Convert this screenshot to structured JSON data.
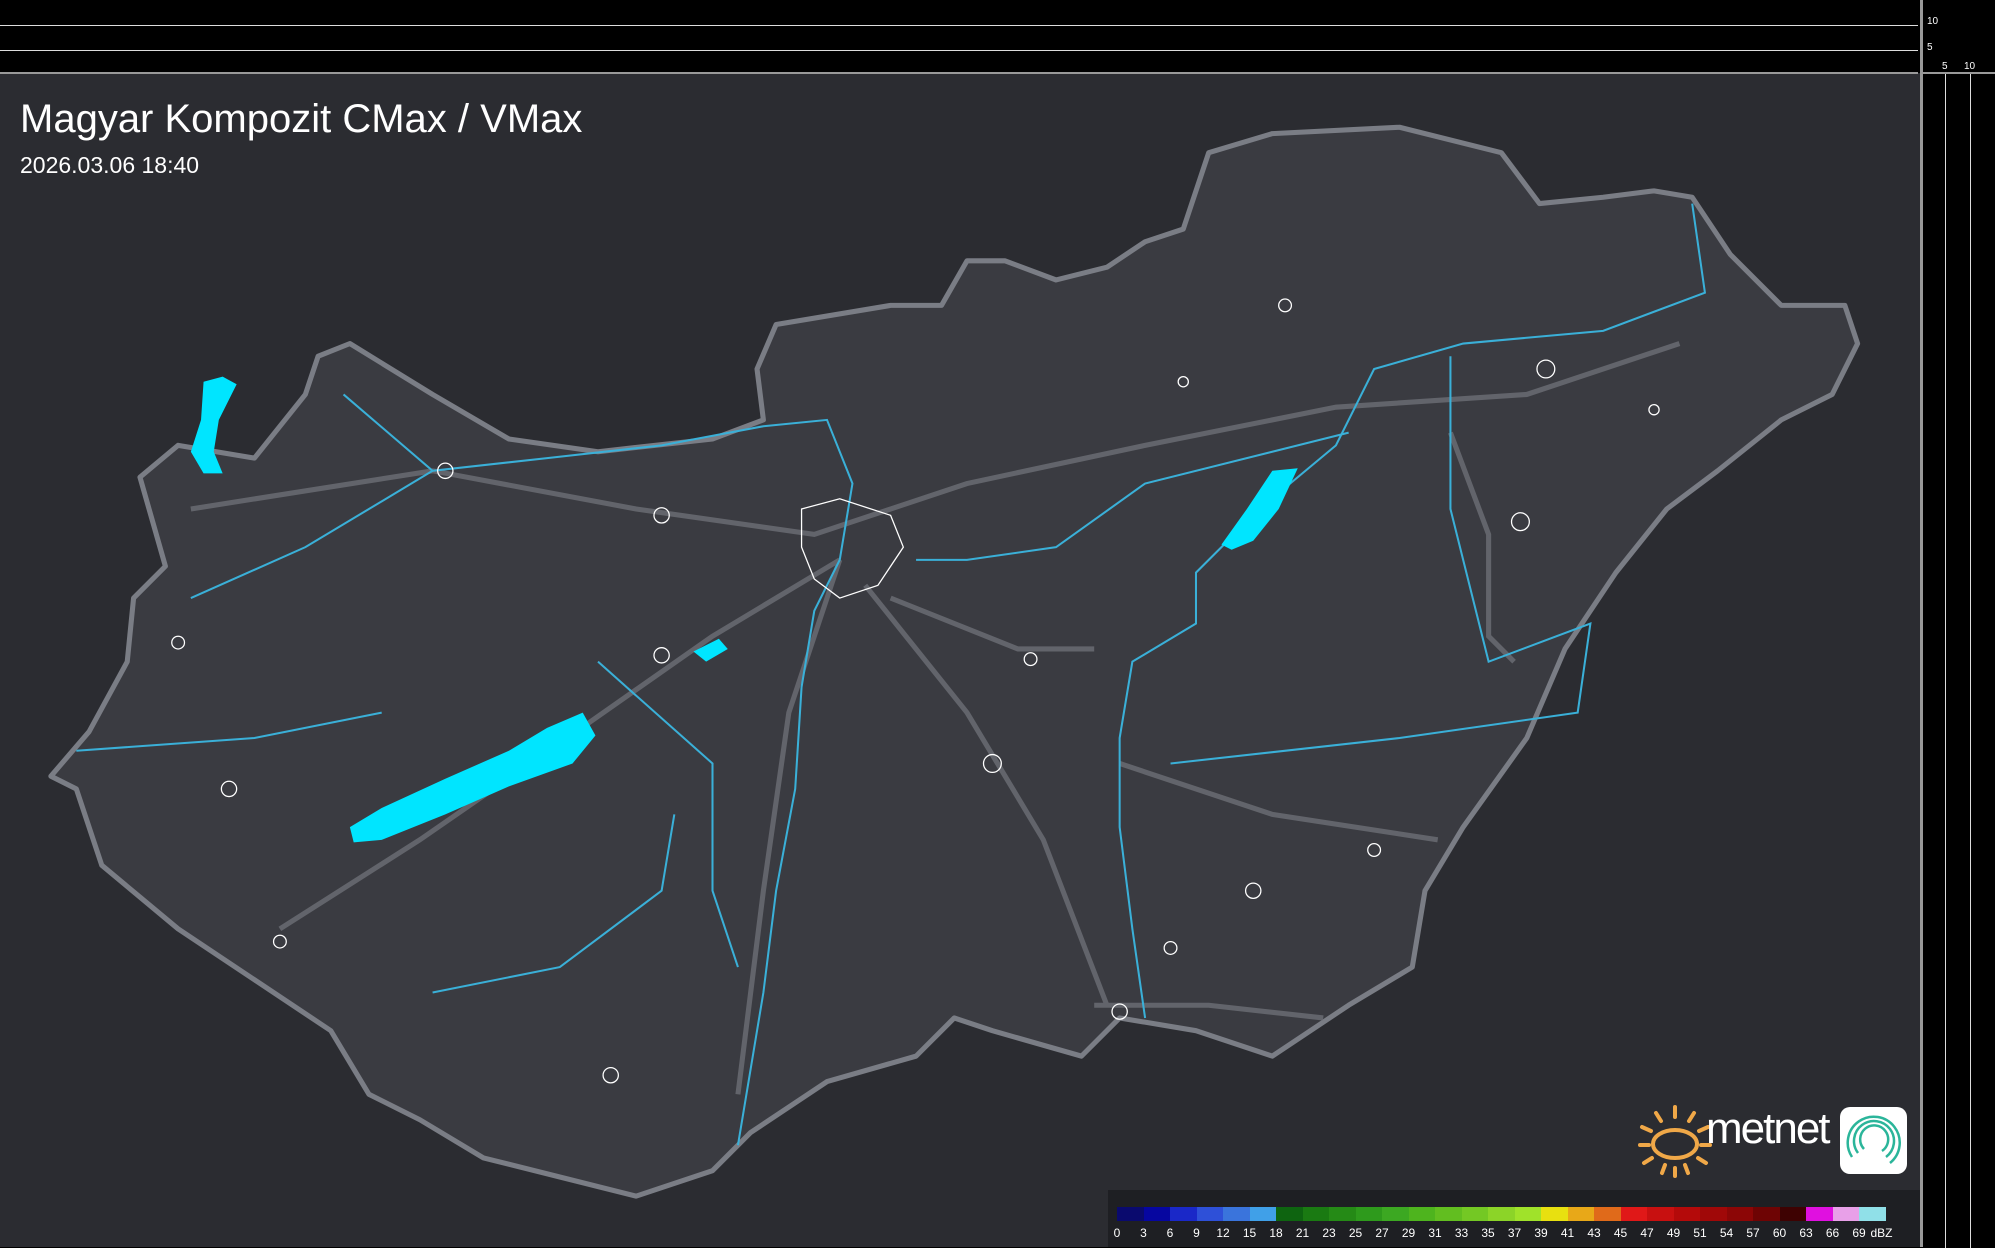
{
  "title": "Magyar Kompozit CMax / VMax",
  "timestamp": "2026.03.06 18:40",
  "axes": {
    "y_ticks": [
      "10",
      "5"
    ],
    "x_ticks": [
      "5",
      "10"
    ]
  },
  "legend": {
    "unit": "dBZ",
    "labels": [
      "0",
      "3",
      "6",
      "9",
      "12",
      "15",
      "18",
      "21",
      "23",
      "25",
      "27",
      "29",
      "31",
      "33",
      "35",
      "37",
      "39",
      "41",
      "43",
      "45",
      "47",
      "49",
      "51",
      "54",
      "57",
      "60",
      "63",
      "66",
      "69"
    ],
    "colors": [
      "#0a0a6e",
      "#0606a0",
      "#1a28c8",
      "#2e50d8",
      "#3a74dc",
      "#40a0e8",
      "#0e6410",
      "#1a7a12",
      "#258a16",
      "#2e9a1c",
      "#3ca822",
      "#4eb41e",
      "#62be20",
      "#74c824",
      "#8cd428",
      "#a0e22a",
      "#e8e010",
      "#e8a818",
      "#e06a1a",
      "#e01818",
      "#c81010",
      "#b40a0a",
      "#a00808",
      "#8c0606",
      "#6e0404",
      "#3e0202",
      "#e010e0",
      "#e8a0e8",
      "#90e0e8"
    ],
    "colorbar_ticks_note": null
  },
  "branding": {
    "logo_text": "metnet",
    "sun_color": "#f0a848",
    "app_icon_color": "#2bb59a"
  },
  "map_colors": {
    "background": "#2b2c31",
    "country_fill": "#3a3b41",
    "border": "#7a7d85",
    "lakes": "#00e5ff",
    "rivers": "#3ab0d8",
    "roads": "#6d6f76",
    "settlements": "#ffffff"
  }
}
